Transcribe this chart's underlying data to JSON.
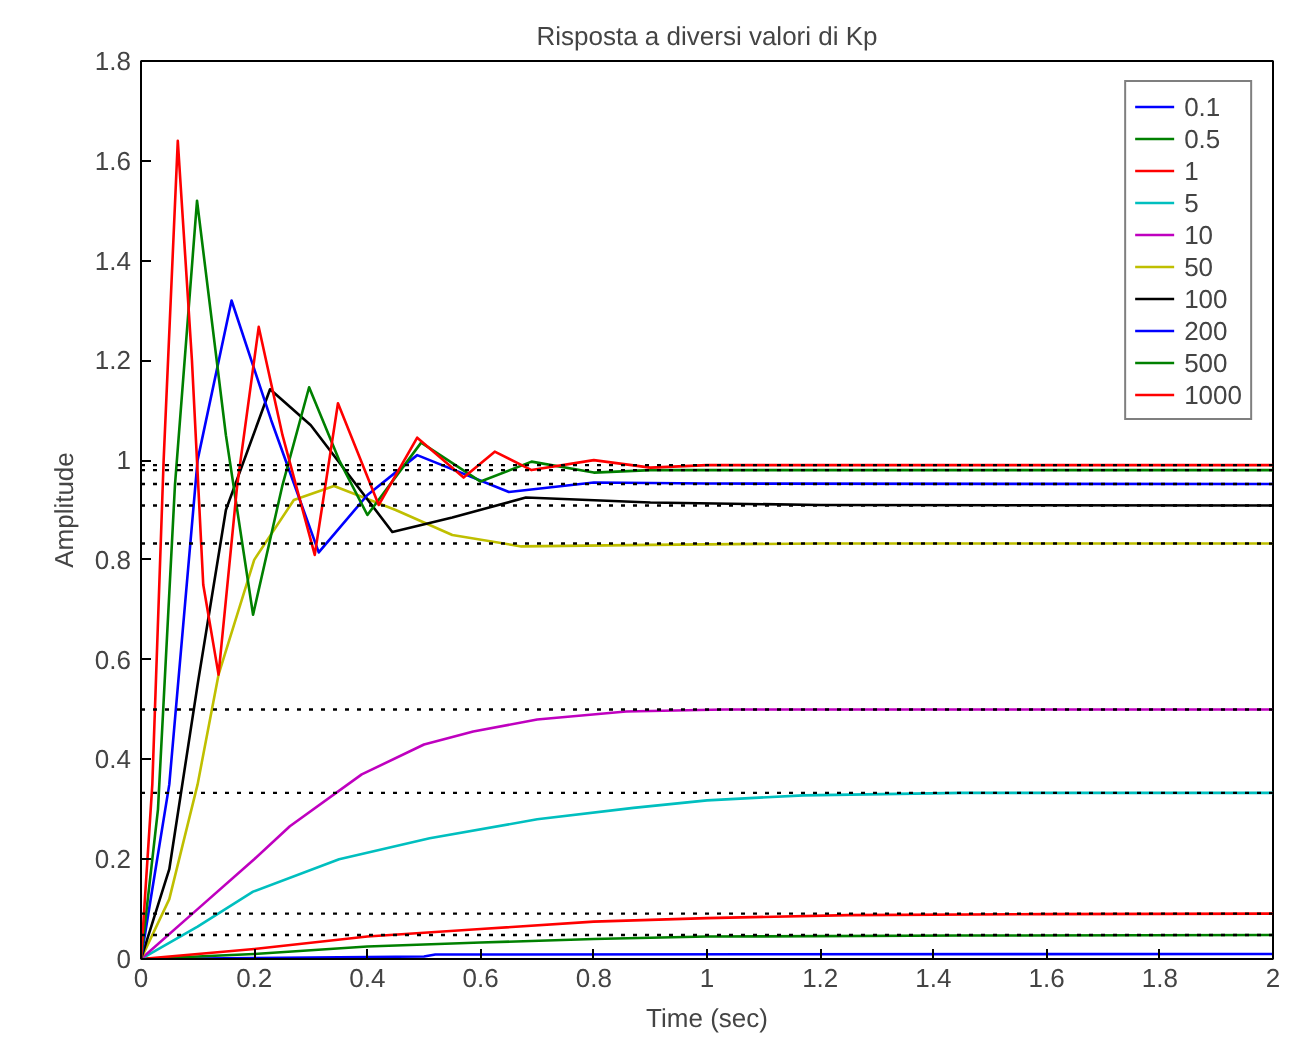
{
  "chart_data": {
    "type": "line",
    "title": "Risposta a diversi valori di Kp",
    "xlabel": "Time (sec)",
    "ylabel": "Amplitude",
    "xlim": [
      0,
      2
    ],
    "ylim": [
      0,
      1.8
    ],
    "xticks": [
      0,
      0.2,
      0.4,
      0.6,
      0.8,
      1,
      1.2,
      1.4,
      1.6,
      1.8,
      2
    ],
    "yticks": [
      0,
      0.2,
      0.4,
      0.6,
      0.8,
      1,
      1.2,
      1.4,
      1.6,
      1.8
    ],
    "grid": false,
    "legend": "top right",
    "line_style": "solid",
    "ref_lines": [
      {
        "axis": "y",
        "value": 0.99,
        "color": "#000000",
        "line_style": "dotted"
      },
      {
        "axis": "y",
        "value": 0.98,
        "color": "#000000",
        "line_style": "dotted"
      },
      {
        "axis": "y",
        "value": 0.952,
        "color": "#000000",
        "line_style": "dotted"
      },
      {
        "axis": "y",
        "value": 0.909,
        "color": "#000000",
        "line_style": "dotted"
      },
      {
        "axis": "y",
        "value": 0.833,
        "color": "#000000",
        "line_style": "dotted"
      },
      {
        "axis": "y",
        "value": 0.5,
        "color": "#000000",
        "line_style": "dotted"
      },
      {
        "axis": "y",
        "value": 0.333,
        "color": "#000000",
        "line_style": "dotted"
      },
      {
        "axis": "y",
        "value": 0.091,
        "color": "#000000",
        "line_style": "dotted"
      },
      {
        "axis": "y",
        "value": 0.048,
        "color": "#000000",
        "line_style": "dotted"
      }
    ],
    "series": [
      {
        "name": "0.1",
        "color": "#0000ff",
        "x": [
          0,
          0.5,
          0.52,
          2
        ],
        "values": [
          0,
          0.005,
          0.009,
          0.01
        ]
      },
      {
        "name": "0.5",
        "color": "#008000",
        "x": [
          0,
          0.2,
          0.4,
          0.6,
          0.8,
          1.0,
          1.45,
          2
        ],
        "values": [
          0,
          0.01,
          0.025,
          0.033,
          0.04,
          0.045,
          0.047,
          0.048
        ]
      },
      {
        "name": "1",
        "color": "#ff0000",
        "x": [
          0,
          0.2,
          0.4,
          0.6,
          0.8,
          1.0,
          1.25,
          1.6,
          2
        ],
        "values": [
          0,
          0.02,
          0.045,
          0.06,
          0.075,
          0.082,
          0.088,
          0.09,
          0.091
        ]
      },
      {
        "name": "5",
        "color": "#00bfbf",
        "x": [
          0,
          0.1,
          0.198,
          0.35,
          0.51,
          0.7,
          0.87,
          1.0,
          1.17,
          1.45,
          2
        ],
        "values": [
          0,
          0.065,
          0.135,
          0.2,
          0.242,
          0.28,
          0.303,
          0.318,
          0.328,
          0.333,
          0.333
        ]
      },
      {
        "name": "10",
        "color": "#bf00bf",
        "x": [
          0,
          0.1,
          0.2,
          0.263,
          0.39,
          0.5,
          0.587,
          0.7,
          0.857,
          1.03,
          2
        ],
        "values": [
          0,
          0.1,
          0.2,
          0.266,
          0.37,
          0.43,
          0.456,
          0.48,
          0.496,
          0.5,
          0.5
        ]
      },
      {
        "name": "50",
        "color": "#bfbf00",
        "x": [
          0,
          0.05,
          0.1,
          0.137,
          0.2,
          0.27,
          0.341,
          0.45,
          0.55,
          0.672,
          0.9,
          1.2,
          2
        ],
        "values": [
          0,
          0.12,
          0.35,
          0.57,
          0.8,
          0.92,
          0.948,
          0.9,
          0.85,
          0.827,
          0.83,
          0.833,
          0.833
        ]
      },
      {
        "name": "100",
        "color": "#000000",
        "x": [
          0,
          0.05,
          0.1,
          0.15,
          0.228,
          0.3,
          0.444,
          0.55,
          0.68,
          0.9,
          1.2,
          2
        ],
        "values": [
          0,
          0.18,
          0.55,
          0.9,
          1.142,
          1.07,
          0.856,
          0.885,
          0.925,
          0.915,
          0.91,
          0.909
        ]
      },
      {
        "name": "200",
        "color": "#0000ff",
        "x": [
          0,
          0.05,
          0.1,
          0.16,
          0.23,
          0.314,
          0.4,
          0.488,
          0.65,
          0.8,
          1.0,
          2
        ],
        "values": [
          0,
          0.35,
          1.0,
          1.32,
          1.08,
          0.815,
          0.93,
          1.01,
          0.936,
          0.955,
          0.953,
          0.952
        ]
      },
      {
        "name": "500",
        "color": "#008000",
        "x": [
          0,
          0.03,
          0.06,
          0.099,
          0.15,
          0.198,
          0.25,
          0.297,
          0.35,
          0.4,
          0.495,
          0.6,
          0.69,
          0.8,
          0.9,
          2
        ],
        "values": [
          0,
          0.3,
          0.95,
          1.52,
          1.05,
          0.69,
          0.95,
          1.146,
          1.0,
          0.89,
          1.035,
          0.957,
          0.997,
          0.975,
          0.98,
          0.98
        ]
      },
      {
        "name": "1000",
        "color": "#ff0000",
        "x": [
          0,
          0.02,
          0.04,
          0.065,
          0.09,
          0.11,
          0.137,
          0.17,
          0.208,
          0.25,
          0.307,
          0.348,
          0.42,
          0.488,
          0.57,
          0.625,
          0.69,
          0.8,
          0.9,
          1.0,
          2
        ],
        "values": [
          0,
          0.35,
          1.0,
          1.64,
          1.2,
          0.75,
          0.57,
          0.95,
          1.267,
          1.05,
          0.81,
          1.114,
          0.91,
          1.045,
          0.965,
          1.017,
          0.98,
          1.0,
          0.985,
          0.99,
          0.99
        ]
      }
    ]
  }
}
